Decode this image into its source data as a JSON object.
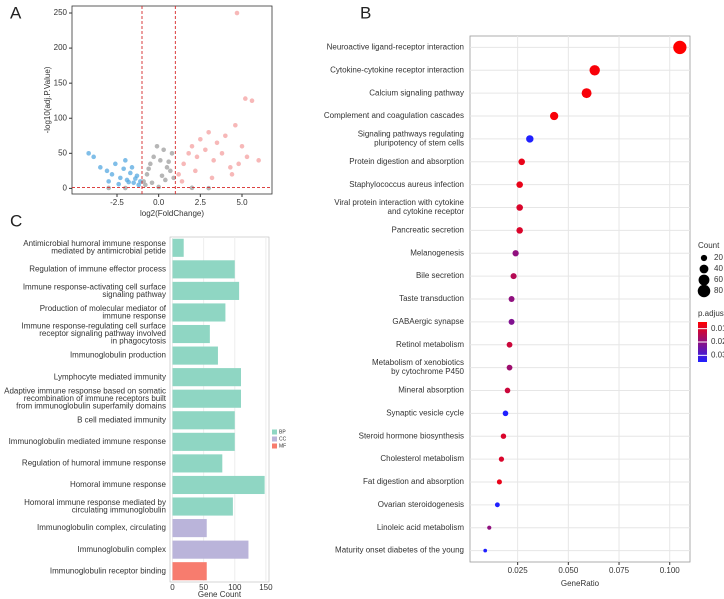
{
  "chart_data": [
    {
      "type": "scatter",
      "panel_label": "A",
      "xlabel": "log2(FoldChange)",
      "ylabel": "-log10(adj.P.Value)",
      "xlim": [
        -5.2,
        6.8
      ],
      "ylim": [
        -8,
        260
      ],
      "xticks": [
        -2.5,
        {
          "value": 0,
          "label": "0.0"
        },
        2.5,
        {
          "value": 5,
          "label": "5.0"
        }
      ],
      "yticks": [
        0,
        50,
        100,
        150,
        200,
        250
      ],
      "vlines": [
        -1,
        1
      ],
      "hline": 1.3,
      "line_color": "#d62728",
      "series": [
        {
          "color": "#56a8e0",
          "x": [
            -4.2,
            -3.9,
            -3.5,
            -3.1,
            -2.8,
            -2.6,
            -2.3,
            -2.1,
            -1.9,
            -1.7,
            -1.5,
            -1.3,
            -1.2,
            -1.1,
            -2.0,
            -1.6,
            -1.4,
            -3.0,
            -2.4,
            -1.8
          ],
          "values": [
            50,
            45,
            30,
            25,
            20,
            35,
            15,
            28,
            12,
            22,
            8,
            18,
            5,
            10,
            40,
            30,
            14,
            10,
            6,
            9
          ]
        },
        {
          "color": "#9e9e9e",
          "x": [
            -0.9,
            -0.7,
            -0.5,
            -0.3,
            -0.1,
            0.1,
            0.3,
            0.5,
            0.7,
            0.9,
            -0.8,
            -0.4,
            0,
            0.4,
            0.8,
            -0.6,
            0.2,
            0.6,
            -2,
            2,
            3,
            -3
          ],
          "values": [
            10,
            20,
            35,
            45,
            60,
            40,
            55,
            30,
            25,
            15,
            5,
            8,
            2,
            12,
            50,
            28,
            18,
            38,
            0.5,
            0.8,
            0.3,
            0.6
          ]
        },
        {
          "color": "#f4a0a0",
          "x": [
            1.2,
            1.5,
            1.8,
            2.0,
            2.3,
            2.5,
            2.8,
            3.0,
            3.3,
            3.5,
            3.8,
            4.0,
            4.3,
            4.6,
            5.0,
            5.3,
            5.6,
            6.0,
            1.4,
            2.2,
            3.2,
            4.4,
            5.2,
            4.7,
            4.8
          ],
          "values": [
            20,
            35,
            50,
            60,
            45,
            70,
            55,
            80,
            40,
            65,
            50,
            75,
            30,
            90,
            60,
            45,
            125,
            40,
            10,
            25,
            15,
            20,
            128,
            250,
            35
          ]
        }
      ]
    },
    {
      "type": "dot",
      "panel_label": "B",
      "xlabel": "GeneRatio",
      "xlim": [
        0.0015,
        0.11
      ],
      "xticks": [
        0.025,
        {
          "value": 0.05,
          "label": "0.050"
        },
        0.075,
        {
          "value": 0.1,
          "label": "0.100"
        }
      ],
      "grid": true,
      "categories": [
        "Neuroactive ligand-receptor interaction",
        "Cytokine-cytokine receptor interaction",
        "Calcium signaling pathway",
        "Complement and coagulation cascades",
        [
          "Signaling pathways regulating",
          "pluripotency of stem cells"
        ],
        "Protein digestion and absorption",
        "Staphylococcus aureus infection",
        [
          "Viral protein interaction with cytokine",
          "and cytokine receptor"
        ],
        "Pancreatic secretion",
        "Melanogenesis",
        "Bile secretion",
        "Taste transduction",
        "GABAergic synapse",
        "Retinol metabolism",
        [
          "Metabolism of xenobiotics",
          "by cytochrome P450"
        ],
        "Mineral absorption",
        "Synaptic vesicle cycle",
        "Steroid hormone biosynthesis",
        "Cholesterol metabolism",
        "Fat digestion and absorption",
        "Ovarian steroidogenesis",
        "Linoleic acid metabolism",
        "Maturity onset diabetes of the young"
      ],
      "values": [
        0.105,
        0.063,
        0.059,
        0.043,
        0.031,
        0.027,
        0.026,
        0.026,
        0.026,
        0.024,
        0.023,
        0.022,
        0.022,
        0.021,
        0.021,
        0.02,
        0.019,
        0.018,
        0.017,
        0.016,
        0.015,
        0.011,
        0.009
      ],
      "count": [
        90,
        55,
        50,
        35,
        28,
        22,
        22,
        22,
        22,
        20,
        19,
        18,
        18,
        17,
        17,
        16,
        16,
        15,
        14,
        13,
        12,
        9,
        7
      ],
      "p_adjust": [
        0.005,
        0.006,
        0.006,
        0.006,
        0.035,
        0.008,
        0.008,
        0.01,
        0.01,
        0.02,
        0.015,
        0.02,
        0.022,
        0.012,
        0.018,
        0.012,
        0.035,
        0.01,
        0.01,
        0.008,
        0.035,
        0.02,
        0.035
      ],
      "size_title": "Count",
      "size_legend": [
        20,
        40,
        60,
        80
      ],
      "color_title": "p.adjust",
      "color_legend": [
        0.01,
        0.02,
        0.03
      ],
      "colorlim": [
        0.005,
        0.035
      ],
      "color_low": "#ff0000",
      "color_high": "#2020ff"
    },
    {
      "type": "barh",
      "panel_label": "C",
      "xlabel": "Gene Count",
      "xlim": [
        -4,
        155
      ],
      "xticks": [
        0,
        50,
        100,
        150
      ],
      "grid": true,
      "categories": [
        [
          "Antimicrobial humoral immune response",
          "mediated by antimicrobial petide"
        ],
        "Regulation of immune effector process",
        [
          "Immune response-activating cell surface",
          "signaling pathway"
        ],
        [
          "Production of molecular mediator of",
          "immune response"
        ],
        [
          "Immune response-regulating cell surface",
          "receptor signaling pathway involved",
          "in phagocytosis"
        ],
        "Immunoglobulin production",
        "Lymphocyte mediated immunity",
        [
          "Adaptive immune response based on somatic",
          "recombination of immune receptors built",
          "from immunoglobulin superfamily domains"
        ],
        "B cell mediated immunity",
        "Immunoglobulin mediated immune response",
        "Regulation of humoral immune response",
        "Homoral immune response",
        [
          "Homoral immune response mediated by",
          "circulating immunoglobulin"
        ],
        "Immunoglobulin complex, circulating",
        "Immunoglobulin complex",
        "Immunoglobulin receptor binding"
      ],
      "values": [
        18,
        100,
        107,
        85,
        60,
        73,
        110,
        110,
        100,
        100,
        80,
        148,
        97,
        55,
        122,
        55
      ],
      "groups": [
        0,
        0,
        0,
        0,
        0,
        0,
        0,
        0,
        0,
        0,
        0,
        0,
        0,
        1,
        1,
        2
      ],
      "series": [
        {
          "name": "BP",
          "color": "#8fd6c3"
        },
        {
          "name": "CC",
          "color": "#bab4da"
        },
        {
          "name": "MF",
          "color": "#f77c6e"
        }
      ]
    }
  ]
}
